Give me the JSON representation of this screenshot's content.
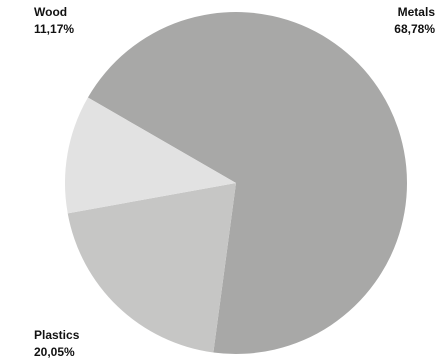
{
  "chart_data": {
    "type": "pie",
    "title": "",
    "slices": [
      {
        "label": "Metals",
        "value": 68.78,
        "display": "68,78%",
        "color": "#a8a8a7"
      },
      {
        "label": "Plastics",
        "value": 20.05,
        "display": "20,05%",
        "color": "#c6c6c5"
      },
      {
        "label": "Wood",
        "value": 11.17,
        "display": "11,17%",
        "color": "#e2e2e2"
      }
    ],
    "legend": "none",
    "labels_position": "outside-corners"
  }
}
